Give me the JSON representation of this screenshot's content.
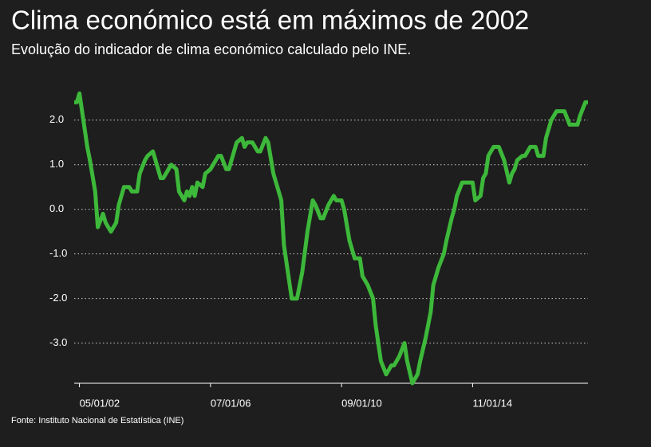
{
  "chart_data": {
    "type": "line",
    "title": "Clima económico está em máximos de 2002",
    "subtitle": "Evolução do indicador de clima económico calculado pelo INE.",
    "source": "Fonte: Instituto Nacional de Estatística (INE)",
    "x": [
      "2002-03-01",
      "2002-04-01",
      "2002-05-01",
      "2002-08-01",
      "2002-09-01",
      "2002-11-01",
      "2002-12-01",
      "2003-02-01",
      "2003-03-01",
      "2003-05-01",
      "2003-07-01",
      "2003-08-01",
      "2003-10-01",
      "2003-12-01",
      "2004-01-01",
      "2004-03-01",
      "2004-04-01",
      "2004-06-01",
      "2004-07-01",
      "2004-09-01",
      "2004-10-01",
      "2004-12-01",
      "2005-01-01",
      "2005-03-01",
      "2005-04-01",
      "2005-06-01",
      "2005-07-01",
      "2005-09-01",
      "2005-10-01",
      "2005-11-01",
      "2005-12-01",
      "2006-01-01",
      "2006-02-01",
      "2006-04-01",
      "2006-05-01",
      "2006-07-01",
      "2006-08-01",
      "2006-10-01",
      "2006-11-01",
      "2007-01-01",
      "2007-02-01",
      "2007-04-01",
      "2007-05-01",
      "2007-07-01",
      "2007-08-01",
      "2007-09-01",
      "2007-11-01",
      "2008-01-01",
      "2008-02-01",
      "2008-04-01",
      "2008-05-01",
      "2008-07-01",
      "2008-08-01",
      "2008-10-01",
      "2008-11-01",
      "2009-01-01",
      "2009-02-01",
      "2009-04-01",
      "2009-06-01",
      "2009-08-01",
      "2009-10-01",
      "2009-11-01",
      "2010-01-01",
      "2010-02-01",
      "2010-04-01",
      "2010-06-01",
      "2010-07-01",
      "2010-09-01",
      "2010-10-01",
      "2010-12-01",
      "2011-02-01",
      "2011-04-01",
      "2011-05-01",
      "2011-07-01",
      "2011-09-01",
      "2011-10-01",
      "2011-12-01",
      "2012-02-01",
      "2012-04-01",
      "2012-05-01",
      "2012-07-01",
      "2012-09-01",
      "2012-10-01",
      "2012-12-01",
      "2013-02-01",
      "2013-03-01",
      "2013-05-01",
      "2013-07-01",
      "2013-08-01",
      "2013-10-01",
      "2013-12-01",
      "2014-01-01",
      "2014-03-01",
      "2014-04-01",
      "2014-05-01",
      "2014-07-01",
      "2014-09-01",
      "2014-11-01",
      "2014-12-01",
      "2015-02-01",
      "2015-03-01",
      "2015-04-01",
      "2015-05-01",
      "2015-07-01",
      "2015-09-01",
      "2015-11-01",
      "2016-01-01",
      "2016-02-01",
      "2016-03-01",
      "2016-04-01",
      "2016-06-01",
      "2016-07-01",
      "2016-09-01",
      "2016-11-01",
      "2016-12-01",
      "2017-02-01",
      "2017-03-01",
      "2017-05-01",
      "2017-07-01",
      "2017-08-01",
      "2017-10-01",
      "2017-12-01",
      "2018-01-01",
      "2018-03-01",
      "2018-04-01",
      "2018-06-01",
      "2018-07-01"
    ],
    "series": [
      {
        "color": "#3db83a",
        "values": [
          2.4,
          2.4,
          2.6,
          1.4,
          1.1,
          0.4,
          -0.4,
          -0.1,
          -0.3,
          -0.5,
          -0.3,
          0.1,
          0.5,
          0.5,
          0.4,
          0.4,
          0.8,
          1.1,
          1.2,
          1.3,
          1.1,
          0.7,
          0.7,
          0.9,
          1.0,
          0.9,
          0.4,
          0.2,
          0.4,
          0.3,
          0.5,
          0.3,
          0.6,
          0.5,
          0.8,
          0.9,
          1.0,
          1.2,
          1.2,
          0.9,
          0.9,
          1.3,
          1.5,
          1.6,
          1.4,
          1.5,
          1.5,
          1.3,
          1.3,
          1.6,
          1.5,
          0.8,
          0.6,
          0.2,
          -0.8,
          -1.6,
          -2.0,
          -2.0,
          -1.4,
          -0.5,
          0.2,
          0.1,
          -0.2,
          -0.2,
          0.1,
          0.3,
          0.2,
          0.2,
          0.0,
          -0.7,
          -1.1,
          -1.1,
          -1.5,
          -1.7,
          -2.0,
          -2.6,
          -3.4,
          -3.7,
          -3.5,
          -3.5,
          -3.3,
          -3.0,
          -3.4,
          -3.9,
          -3.7,
          -3.4,
          -2.9,
          -2.3,
          -1.7,
          -1.3,
          -1.0,
          -0.7,
          -0.2,
          0.0,
          0.3,
          0.6,
          0.6,
          0.6,
          0.2,
          0.3,
          0.7,
          0.8,
          1.2,
          1.4,
          1.4,
          1.1,
          0.6,
          0.8,
          0.9,
          1.1,
          1.2,
          1.2,
          1.4,
          1.4,
          1.2,
          1.2,
          1.6,
          2.0,
          2.2,
          2.2,
          2.2,
          1.9,
          1.9,
          1.9,
          2.1,
          2.4,
          2.4
        ]
      }
    ],
    "xlim": [
      "2002-03-01",
      "2018-07-01"
    ],
    "xticks": [
      {
        "value": "2002-05-01",
        "label": "05/01/02"
      },
      {
        "value": "2006-07-01",
        "label": "07/01/06"
      },
      {
        "value": "2010-09-01",
        "label": "09/01/10"
      },
      {
        "value": "2014-11-01",
        "label": "11/01/14"
      }
    ],
    "ylim": [
      -3.9,
      2.8
    ],
    "yticks": [
      {
        "value": 2,
        "label": "2.0"
      },
      {
        "value": 1,
        "label": "1.0"
      },
      {
        "value": 0,
        "label": "0.0"
      },
      {
        "value": -1,
        "label": "-1.0"
      },
      {
        "value": -2,
        "label": "-2.0"
      },
      {
        "value": -3,
        "label": "-3.0"
      }
    ],
    "grid": true
  }
}
